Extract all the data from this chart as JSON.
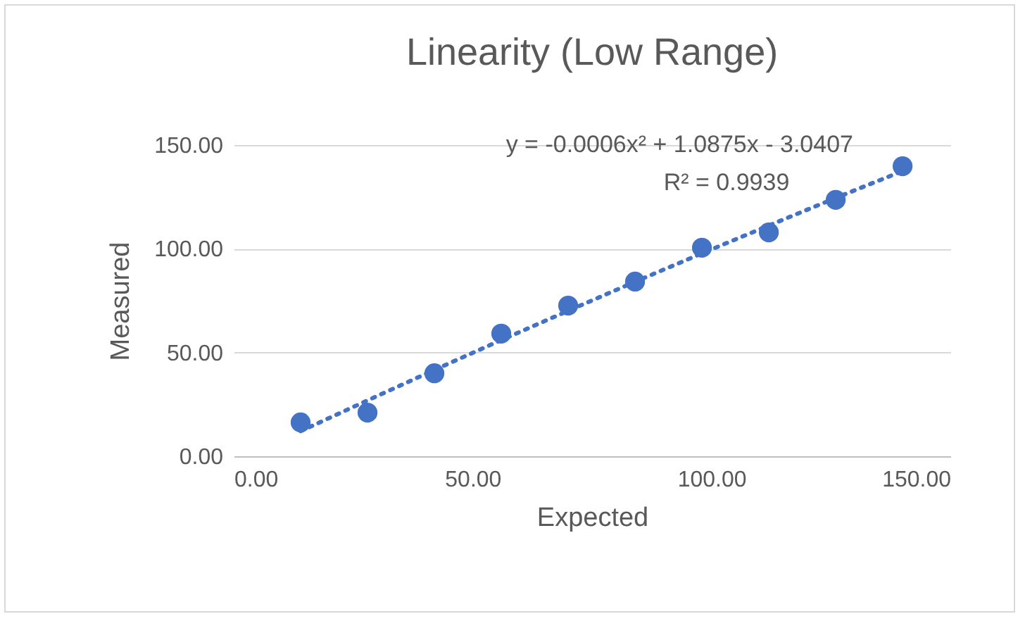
{
  "chart_data": {
    "type": "scatter",
    "title": "Linearity (Low Range)",
    "xlabel": "Expected",
    "ylabel": "Measured",
    "x": [
      14,
      28,
      42,
      56,
      70,
      84,
      98,
      112,
      126,
      140
    ],
    "series": [
      {
        "color": "#4472c4",
        "marker": "circle",
        "values": [
          16.3,
          21.0,
          40.0,
          59.1,
          72.6,
          84.2,
          100.5,
          107.9,
          123.6,
          139.8
        ]
      },
      {
        "type": "line",
        "color": "#4472c4",
        "line_style": "dotted",
        "marker": "none",
        "x": [
          14,
          28,
          42,
          56,
          70,
          84,
          98,
          112,
          126,
          140
        ],
        "values": [
          12.1,
          26.9,
          41.6,
          56.0,
          70.1,
          84.1,
          97.8,
          111.2,
          124.5,
          137.5
        ]
      }
    ],
    "xlim": [
      0,
      150
    ],
    "ylim": [
      0,
      150
    ],
    "xticks": [
      {
        "value": 0,
        "label": "0.00"
      },
      {
        "value": 50,
        "label": "50.00"
      },
      {
        "value": 100,
        "label": "100.00"
      },
      {
        "value": 150,
        "label": "150.00"
      }
    ],
    "yticks": [
      {
        "value": 0,
        "label": "0.00"
      },
      {
        "value": 50,
        "label": "50.00"
      },
      {
        "value": 100,
        "label": "100.00"
      },
      {
        "value": 150,
        "label": "150.00"
      }
    ],
    "grid": "y",
    "annotations": [
      "y = -0.0006x² + 1.0875x - 3.0407",
      "R² = 0.9939"
    ]
  }
}
